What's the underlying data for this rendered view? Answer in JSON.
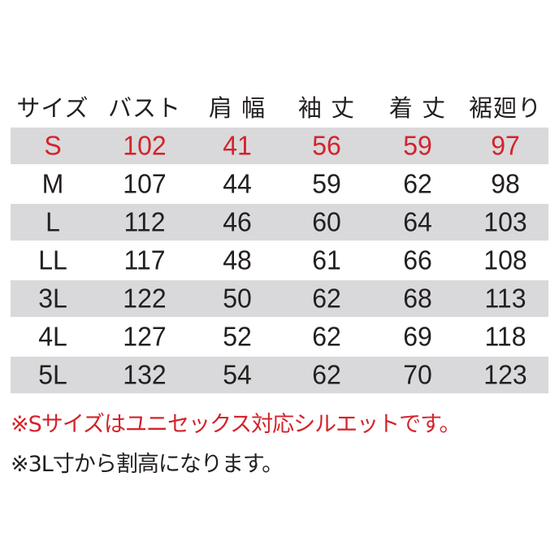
{
  "headers": [
    "サイズ",
    "バスト",
    "肩 幅",
    "袖 丈",
    "着 丈",
    "裾廻り"
  ],
  "rows": [
    [
      "S",
      "102",
      "41",
      "56",
      "59",
      "97"
    ],
    [
      "M",
      "107",
      "44",
      "59",
      "62",
      "98"
    ],
    [
      "L",
      "112",
      "46",
      "60",
      "64",
      "103"
    ],
    [
      "LL",
      "117",
      "48",
      "61",
      "66",
      "108"
    ],
    [
      "3L",
      "122",
      "50",
      "62",
      "68",
      "113"
    ],
    [
      "4L",
      "127",
      "52",
      "62",
      "69",
      "118"
    ],
    [
      "5L",
      "132",
      "54",
      "62",
      "70",
      "123"
    ]
  ],
  "notes": [
    "※Sサイズはユニセックス対応シルエットです。",
    "※3L寸から割高になります。"
  ],
  "colors": {
    "highlight_text": "#d4232b",
    "row_shade": "#d9d9db",
    "text": "#231f20"
  }
}
